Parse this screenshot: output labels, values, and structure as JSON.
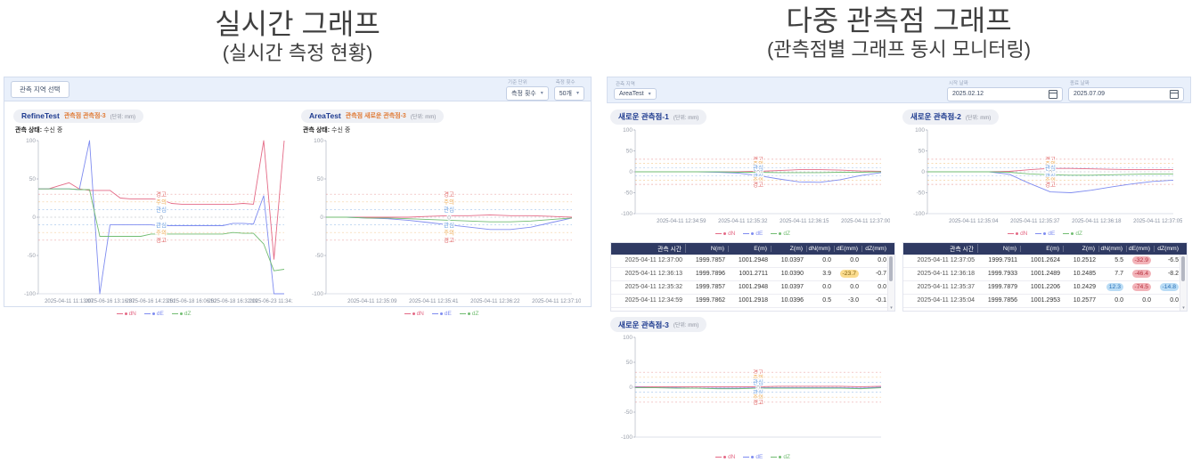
{
  "left_panel": {
    "title": "실시간 그래프",
    "subtitle": "(실시간 측정 현황)",
    "toolbar": {
      "select_area_button": "관측 지역 선택",
      "criteria_label": "기준 단위",
      "criteria_value": "측정 횟수",
      "count_label": "측정 횟수",
      "count_value": "50개"
    },
    "status_label": "관측 상태:",
    "status_value": "수신 중"
  },
  "right_panel": {
    "title": "다중 관측점 그래프",
    "subtitle": "(관측점별 그래프 동시 모니터링)",
    "toolbar": {
      "area_label": "관측 지역",
      "area_value": "AreaTest",
      "start_label": "시작 날짜",
      "start_value": "2025.02.12",
      "end_label": "종료 날짜",
      "end_value": "2025.07.09"
    }
  },
  "colors": {
    "dN": "#e46a86",
    "dE": "#7f8cf0",
    "dZ": "#72bd72",
    "warning": "#e06666",
    "caution": "#eda94f",
    "interest": "#6b9fe0",
    "zero": "#9aa0ab",
    "table_header": "#2f3a63"
  },
  "chart_data": [
    {
      "type": "line",
      "site": "RefineTest",
      "station": "관측점 관측점-3",
      "unit": "(단위: mm)",
      "ylim": [
        -100,
        100
      ],
      "yticks": [
        100,
        50,
        0,
        -50,
        -100
      ],
      "thresholds": [
        {
          "y": 30,
          "label": "경고",
          "level": "warning"
        },
        {
          "y": 20,
          "label": "주의",
          "level": "caution"
        },
        {
          "y": 10,
          "label": "관심",
          "level": "interest"
        },
        {
          "y": 0,
          "label": "0",
          "level": "zero"
        },
        {
          "y": -10,
          "label": "관심",
          "level": "interest"
        },
        {
          "y": -20,
          "label": "주의",
          "level": "caution"
        },
        {
          "y": -30,
          "label": "경고",
          "level": "warning"
        }
      ],
      "x_labels": [
        "2025-04-11 11:13:07",
        "2025-06-16 13:16:37",
        "2025-06-16 14:23:51",
        "2025-06-18 16:06:52",
        "2025-06-18 16:32:19",
        "2025-06-23 11:34:24"
      ],
      "series": [
        {
          "name": "dN",
          "values": [
            37,
            37,
            41,
            45,
            37,
            35,
            35,
            35,
            25,
            24,
            24,
            24,
            23,
            18,
            17,
            17,
            17,
            17,
            17,
            17,
            18,
            17,
            100,
            -55,
            100
          ]
        },
        {
          "name": "dE",
          "values": [
            37,
            37,
            37,
            37,
            36,
            100,
            -100,
            -10,
            -10,
            -10,
            -10,
            -10,
            -11,
            -11,
            -11,
            -11,
            -11,
            -11,
            -11,
            -8,
            -8,
            -9,
            28,
            -100,
            -100
          ]
        },
        {
          "name": "dZ",
          "values": [
            37,
            37,
            37,
            37,
            36,
            36,
            -25,
            -25,
            -25,
            -25,
            -25,
            -22,
            -22,
            -22,
            -22,
            -22,
            -22,
            -22,
            -22,
            -20,
            -21,
            -21,
            -35,
            -70,
            -68
          ]
        }
      ]
    },
    {
      "type": "line",
      "site": "AreaTest",
      "station": "관측점 새로운 관측점-3",
      "unit": "(단위: mm)",
      "ylim": [
        -100,
        100
      ],
      "yticks": [
        100,
        50,
        0,
        -50,
        -100
      ],
      "thresholds": [
        {
          "y": 30,
          "label": "경고",
          "level": "warning"
        },
        {
          "y": 20,
          "label": "주의",
          "level": "caution"
        },
        {
          "y": 10,
          "label": "관심",
          "level": "interest"
        },
        {
          "y": 0,
          "label": "0",
          "level": "zero"
        },
        {
          "y": -10,
          "label": "관심",
          "level": "interest"
        },
        {
          "y": -20,
          "label": "주의",
          "level": "caution"
        },
        {
          "y": -30,
          "label": "경고",
          "level": "warning"
        }
      ],
      "x_labels": [
        "2025-04-11 12:35:09",
        "2025-04-11 12:35:41",
        "2025-04-11 12:36:22",
        "2025-04-11 12:37:10"
      ],
      "series": [
        {
          "name": "dN",
          "values": [
            0,
            0,
            0,
            0,
            0,
            1,
            2,
            2,
            3,
            2,
            2,
            1,
            0
          ]
        },
        {
          "name": "dE",
          "values": [
            0,
            0,
            -1,
            -2,
            -4,
            -7,
            -10,
            -13,
            -16,
            -16,
            -13,
            -7,
            -1
          ]
        },
        {
          "name": "dZ",
          "values": [
            0,
            0,
            -1,
            -1,
            -2,
            -3,
            -4,
            -5,
            -6,
            -6,
            -5,
            -3,
            -1
          ]
        }
      ]
    },
    {
      "type": "line",
      "site": "새로운 관측점-1",
      "station": "",
      "unit": "(단위: mm)",
      "ylim": [
        -100,
        100
      ],
      "yticks": [
        100,
        50,
        0,
        -50,
        -100
      ],
      "thresholds": [
        {
          "y": 30,
          "label": "경고",
          "level": "warning"
        },
        {
          "y": 20,
          "label": "주의",
          "level": "caution"
        },
        {
          "y": 10,
          "label": "관심",
          "level": "interest"
        },
        {
          "y": 0,
          "label": "0",
          "level": "zero"
        },
        {
          "y": -10,
          "label": "관심",
          "level": "interest"
        },
        {
          "y": -20,
          "label": "주의",
          "level": "caution"
        },
        {
          "y": -30,
          "label": "경고",
          "level": "warning"
        }
      ],
      "x_labels": [
        "2025-04-11 12:34:59",
        "2025-04-11 12:35:32",
        "2025-04-11 12:36:15",
        "2025-04-11 12:37:00"
      ],
      "series": [
        {
          "name": "dN",
          "values": [
            0,
            0,
            0,
            0,
            0,
            0,
            1,
            3,
            5,
            5,
            4,
            2,
            1
          ]
        },
        {
          "name": "dE",
          "values": [
            0,
            0,
            0,
            0,
            -1,
            -3,
            -9,
            -17,
            -24,
            -25,
            -19,
            -9,
            -2
          ]
        },
        {
          "name": "dZ",
          "values": [
            0,
            0,
            0,
            0,
            0,
            -1,
            -1,
            -2,
            -2,
            -2,
            -1,
            -1,
            0
          ]
        }
      ]
    },
    {
      "type": "line",
      "site": "새로운 관측점-2",
      "station": "",
      "unit": "(단위: mm)",
      "ylim": [
        -100,
        100
      ],
      "yticks": [
        100,
        50,
        0,
        -50,
        -100
      ],
      "thresholds": [
        {
          "y": 30,
          "label": "경고",
          "level": "warning"
        },
        {
          "y": 20,
          "label": "주의",
          "level": "caution"
        },
        {
          "y": 10,
          "label": "관심",
          "level": "interest"
        },
        {
          "y": 0,
          "label": "0",
          "level": "zero"
        },
        {
          "y": -10,
          "label": "관심",
          "level": "interest"
        },
        {
          "y": -20,
          "label": "주의",
          "level": "caution"
        },
        {
          "y": -30,
          "label": "경고",
          "level": "warning"
        }
      ],
      "x_labels": [
        "2025-04-11 12:35:04",
        "2025-04-11 12:35:37",
        "2025-04-11 12:36:18",
        "2025-04-11 12:37:05"
      ],
      "series": [
        {
          "name": "dN",
          "values": [
            0,
            0,
            0,
            0,
            1,
            5,
            8,
            8,
            7,
            6,
            5,
            5,
            5
          ]
        },
        {
          "name": "dE",
          "values": [
            0,
            0,
            0,
            0,
            -6,
            -28,
            -48,
            -50,
            -44,
            -36,
            -29,
            -23,
            -20
          ]
        },
        {
          "name": "dZ",
          "values": [
            0,
            0,
            0,
            0,
            -1,
            -5,
            -7,
            -8,
            -8,
            -7,
            -6,
            -5,
            -5
          ]
        }
      ]
    },
    {
      "type": "line",
      "site": "새로운 관측점-3",
      "station": "",
      "unit": "(단위: mm)",
      "ylim": [
        -100,
        100
      ],
      "yticks": [
        100,
        50,
        0,
        -50,
        -100
      ],
      "thresholds": [
        {
          "y": 30,
          "label": "경고",
          "level": "warning"
        },
        {
          "y": 20,
          "label": "주의",
          "level": "caution"
        },
        {
          "y": 10,
          "label": "관심",
          "level": "interest"
        },
        {
          "y": 0,
          "label": "0",
          "level": "zero"
        },
        {
          "y": -10,
          "label": "관심",
          "level": "interest"
        },
        {
          "y": -20,
          "label": "주의",
          "level": "caution"
        },
        {
          "y": -30,
          "label": "경고",
          "level": "warning"
        }
      ],
      "x_labels": [],
      "series": [
        {
          "name": "dN",
          "values": [
            1,
            1,
            1,
            1,
            1,
            1,
            1,
            2,
            2,
            2,
            2,
            1,
            2
          ]
        },
        {
          "name": "dE",
          "values": [
            0,
            -1,
            -1,
            -2,
            -2,
            -2,
            -1,
            -1,
            -1,
            -1,
            -1,
            -2,
            0
          ]
        },
        {
          "name": "dZ",
          "values": [
            -1,
            -1,
            -2,
            -2,
            -3,
            -3,
            -2,
            -2,
            -2,
            -2,
            -2,
            -3,
            -1
          ]
        }
      ]
    }
  ],
  "tables": [
    {
      "columns": [
        "관측 시간",
        "N(m)",
        "E(m)",
        "Z(m)",
        "dN(mm)",
        "dE(mm)",
        "dZ(mm)"
      ],
      "rows": [
        [
          "2025-04-11 12:37:00",
          "1999.7857",
          "1001.2948",
          "10.0397",
          "0.0",
          "0.0",
          "0.0"
        ],
        [
          "2025-04-11 12:36:13",
          "1999.7896",
          "1001.2711",
          "10.0390",
          "3.9",
          "-23.7",
          "-0.7"
        ],
        [
          "2025-04-11 12:35:32",
          "1999.7857",
          "1001.2948",
          "10.0397",
          "0.0",
          "0.0",
          "0.0"
        ],
        [
          "2025-04-11 12:34:59",
          "1999.7862",
          "1001.2918",
          "10.0396",
          "0.5",
          "-3.0",
          "-0.1"
        ]
      ],
      "highlights": [
        [
          null,
          null,
          null,
          null,
          null,
          null,
          null
        ],
        [
          null,
          null,
          null,
          null,
          null,
          "yellow",
          null
        ],
        [
          null,
          null,
          null,
          null,
          null,
          null,
          null
        ],
        [
          null,
          null,
          null,
          null,
          null,
          null,
          null
        ]
      ]
    },
    {
      "columns": [
        "관측 시간",
        "N(m)",
        "E(m)",
        "Z(m)",
        "dN(mm)",
        "dE(mm)",
        "dZ(mm)"
      ],
      "rows": [
        [
          "2025-04-11 12:37:05",
          "1999.7911",
          "1001.2624",
          "10.2512",
          "5.5",
          "-32.9",
          "-6.5"
        ],
        [
          "2025-04-11 12:36:18",
          "1999.7933",
          "1001.2489",
          "10.2485",
          "7.7",
          "-46.4",
          "-8.2"
        ],
        [
          "2025-04-11 12:35:37",
          "1999.7879",
          "1001.2206",
          "10.2429",
          "12.3",
          "-74.5",
          "-14.8"
        ],
        [
          "2025-04-11 12:35:04",
          "1999.7856",
          "1001.2953",
          "10.2577",
          "0.0",
          "0.0",
          "0.0"
        ]
      ],
      "highlights": [
        [
          null,
          null,
          null,
          null,
          null,
          "red",
          null
        ],
        [
          null,
          null,
          null,
          null,
          null,
          "red",
          null
        ],
        [
          null,
          null,
          null,
          null,
          "blue",
          "red",
          "blue"
        ],
        [
          null,
          null,
          null,
          null,
          null,
          null,
          null
        ]
      ]
    }
  ]
}
